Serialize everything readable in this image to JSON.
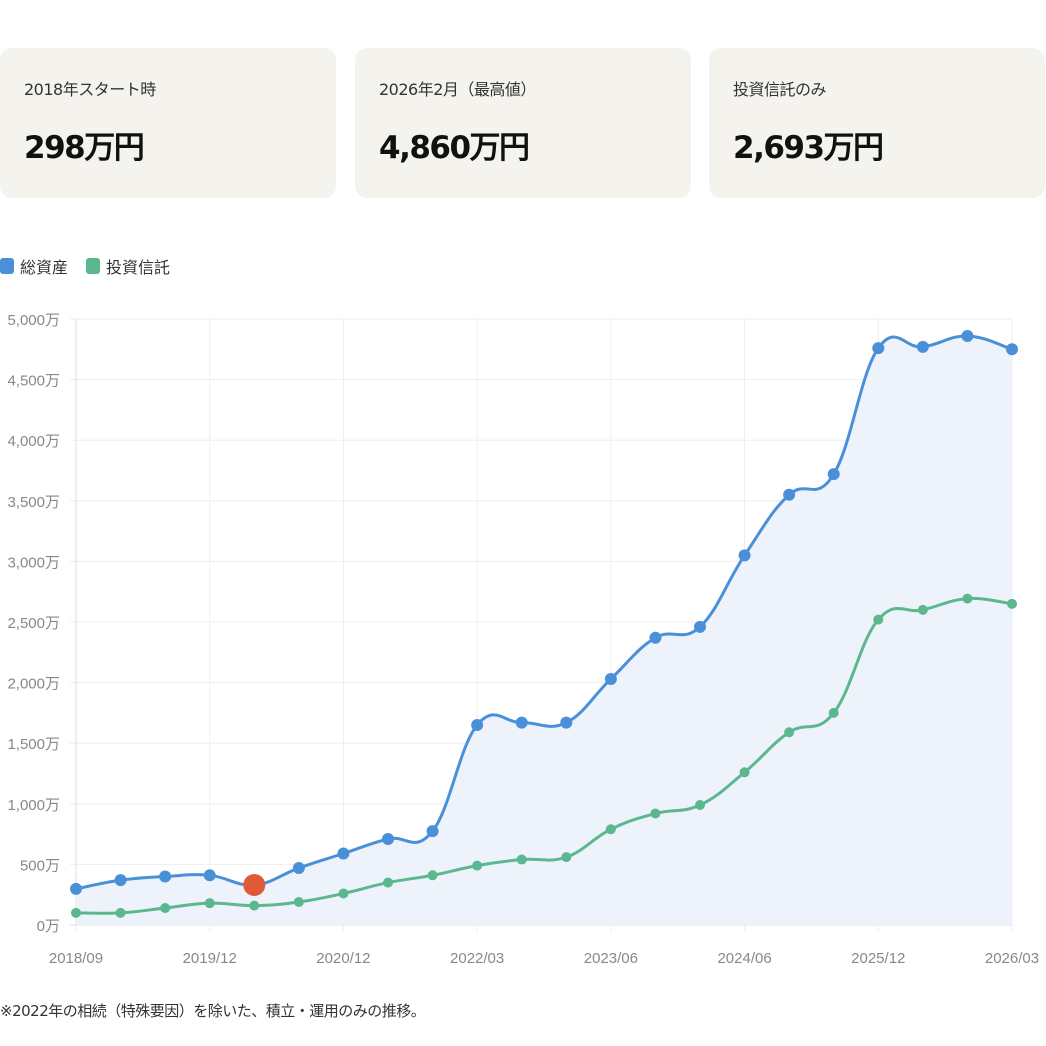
{
  "cards": [
    {
      "label": "2018年スタート時",
      "value": "298万円"
    },
    {
      "label": "2026年2月（最高値）",
      "value": "4,860万円"
    },
    {
      "label": "投資信託のみ",
      "value": "2,693万円"
    }
  ],
  "colors": {
    "total": "#4a90d9",
    "fund": "#5bb88e",
    "highlight": "#e05a3a",
    "area": "#eef3fb",
    "card_bg": "#f4f3ee"
  },
  "note": "※2022年の相続（特殊要因）を除いた、積立・運用のみの推移。",
  "chart_data": {
    "type": "line",
    "title": "",
    "xlabel": "",
    "ylabel": "",
    "ylim": [
      0,
      5000
    ],
    "yticks": [
      "0万",
      "500万",
      "1,000万",
      "1,500万",
      "2,000万",
      "2,500万",
      "3,000万",
      "3,500万",
      "4,000万",
      "4,500万",
      "5,000万"
    ],
    "ytick_values": [
      0,
      500,
      1000,
      1500,
      2000,
      2500,
      3000,
      3500,
      4000,
      4500,
      5000
    ],
    "xticks": [
      {
        "index": 0,
        "label": "2018/09"
      },
      {
        "index": 3,
        "label": "2019/12"
      },
      {
        "index": 6,
        "label": "2020/12"
      },
      {
        "index": 9,
        "label": "2022/03"
      },
      {
        "index": 12,
        "label": "2023/06"
      },
      {
        "index": 15,
        "label": "2024/06"
      },
      {
        "index": 18,
        "label": "2025/12"
      },
      {
        "index": 21,
        "label": "2026/03"
      }
    ],
    "grid": true,
    "legend_position": "top-left",
    "highlight_index": 4,
    "series": [
      {
        "name": "総資産",
        "filled": true,
        "values": [
          298,
          370,
          400,
          410,
          330,
          470,
          590,
          710,
          775,
          1650,
          1670,
          1670,
          2030,
          2370,
          2460,
          3050,
          3550,
          3720,
          4760,
          4770,
          4860,
          4750
        ]
      },
      {
        "name": "投資信託",
        "filled": false,
        "values": [
          100,
          100,
          140,
          180,
          160,
          190,
          260,
          350,
          410,
          490,
          540,
          560,
          790,
          920,
          990,
          1260,
          1590,
          1750,
          2520,
          2600,
          2693,
          2650
        ]
      }
    ]
  }
}
